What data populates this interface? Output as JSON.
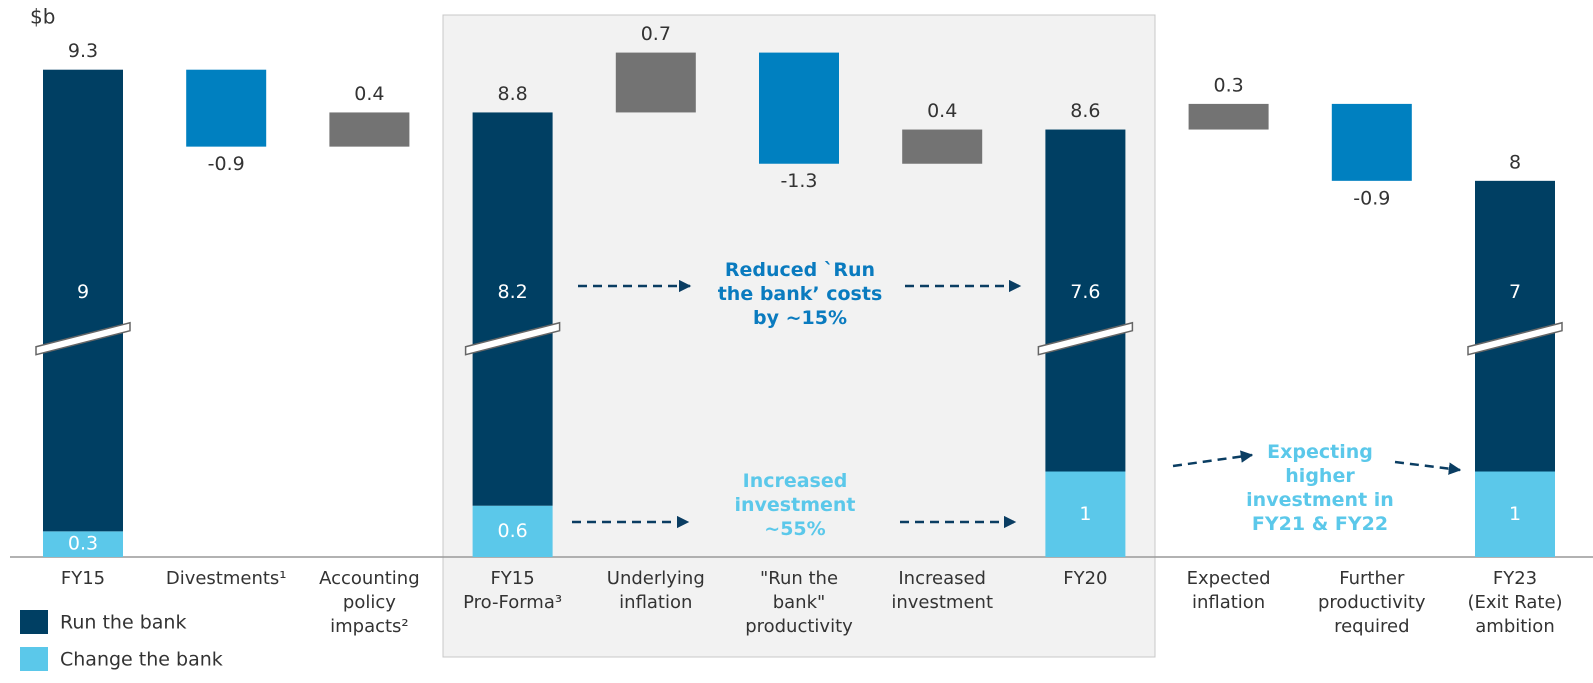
{
  "chart_data": {
    "type": "waterfall",
    "y_label": "$b",
    "categories": [
      "FY15",
      "Divestments¹",
      "Accounting\npolicy\nimpacts²",
      "FY15\nPro-Forma³",
      "Underlying\ninflation",
      "\"Run the\nbank\"\nproductivity",
      "Increased\ninvestment",
      "FY20",
      "Expected\ninflation",
      "Further\nproductivity\nrequired",
      "FY23\n(Exit Rate)\nambition"
    ],
    "totals": [
      9.3,
      null,
      null,
      8.8,
      null,
      null,
      null,
      8.6,
      null,
      null,
      8.0
    ],
    "steps": {
      "values": [
        null,
        -0.9,
        0.4,
        null,
        0.7,
        -1.3,
        0.4,
        null,
        0.3,
        -0.9,
        null
      ],
      "increase_color": "#737373",
      "decrease_color": "#0080c0"
    },
    "series": [
      {
        "name": "Change the bank",
        "color": "#5bc8ea",
        "values": [
          0.3,
          null,
          null,
          0.6,
          null,
          null,
          null,
          1.0,
          null,
          null,
          1.0
        ]
      },
      {
        "name": "Run the bank",
        "color": "#003f63",
        "values": [
          9.0,
          null,
          null,
          8.2,
          null,
          null,
          null,
          7.6,
          null,
          null,
          7.0
        ]
      }
    ],
    "ylim": [
      0,
      9.7
    ],
    "axis_break": [
      2.6,
      6.2
    ],
    "annotations": [
      "Reduced  `Run\nthe bank’ costs\nby ~15%",
      "Increased\ninvestment\n~55%",
      "Expecting\nhigher\ninvestment in\nFY21 & FY22"
    ]
  }
}
